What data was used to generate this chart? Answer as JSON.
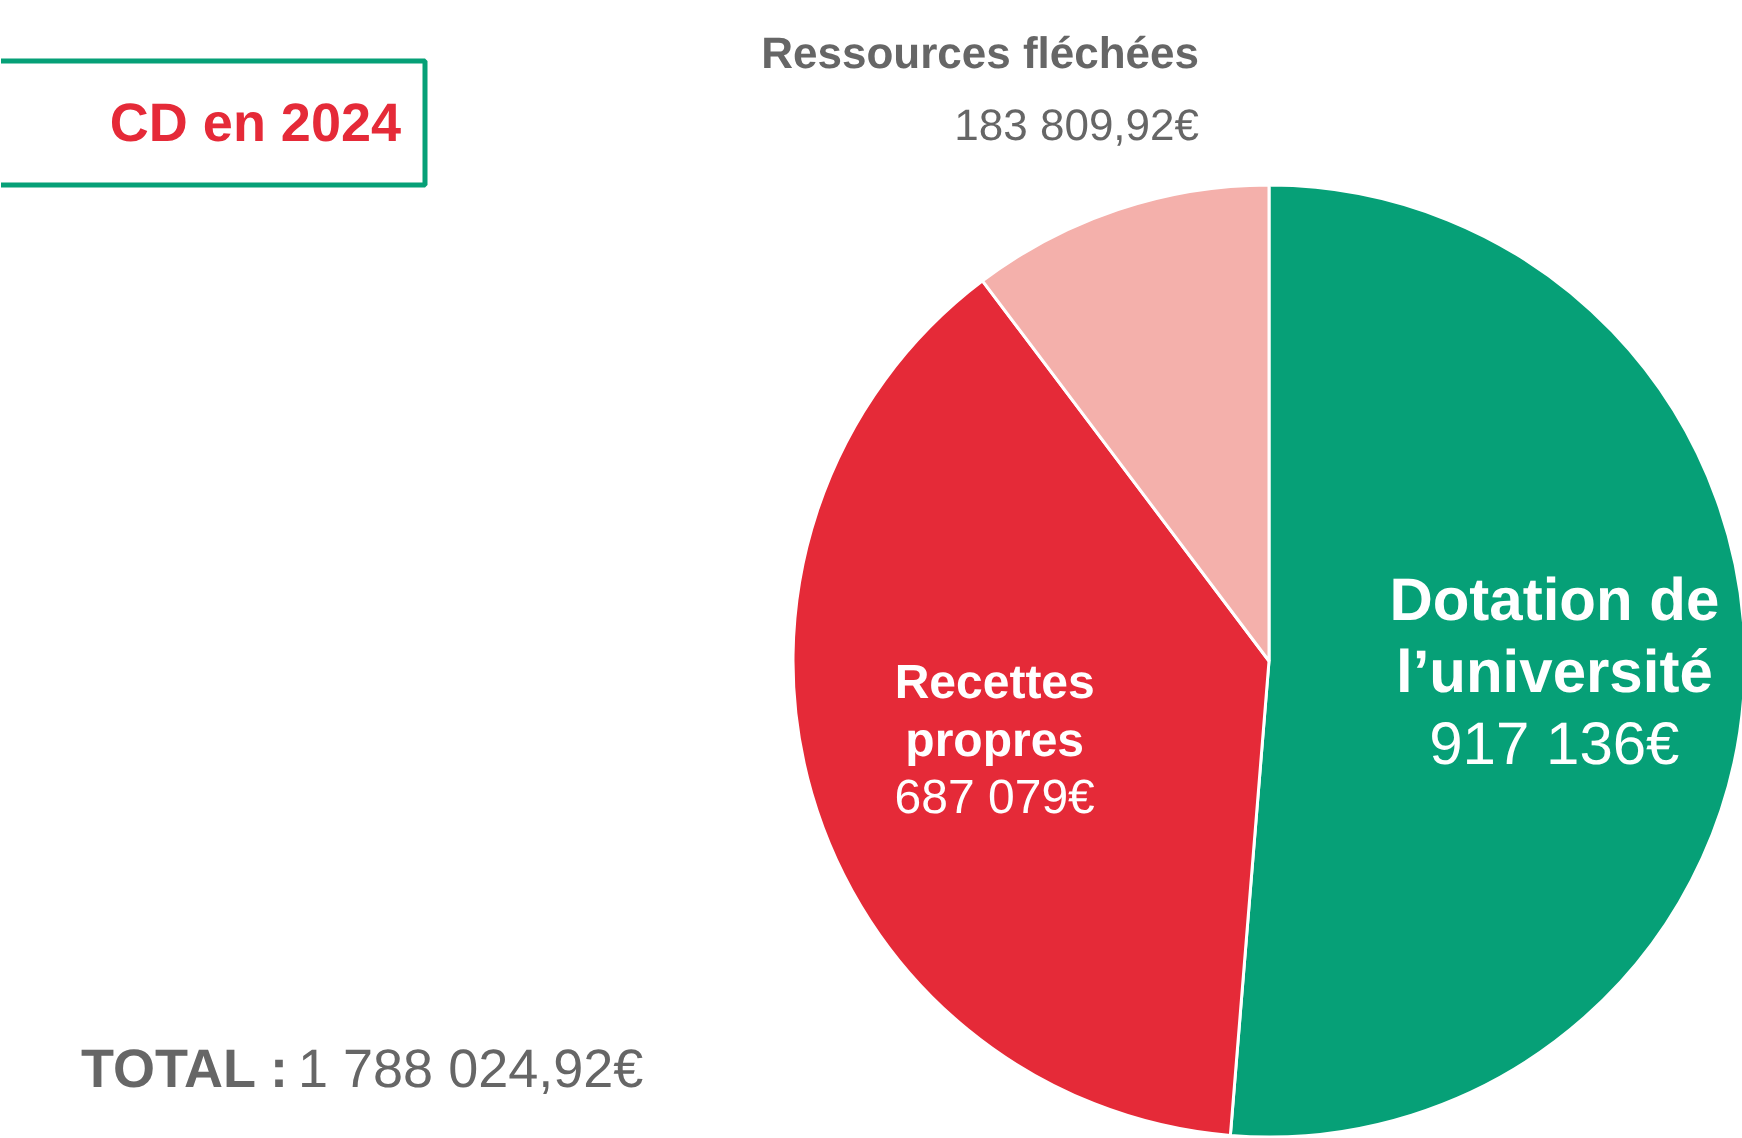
{
  "chart_data": {
    "type": "pie",
    "title": "CD en 2024",
    "categories": [
      "Dotation de l’université",
      "Recettes propres",
      "Ressources fléchées"
    ],
    "values": [
      917136,
      687079,
      183809.92
    ],
    "value_labels": [
      "917 136€",
      "687 079€",
      "183 809,92€"
    ],
    "colors": [
      "#06a077",
      "#e52a38",
      "#f4b0ab"
    ],
    "annotations": [
      "TOTAL : 1 788 024,92€"
    ]
  }
}
